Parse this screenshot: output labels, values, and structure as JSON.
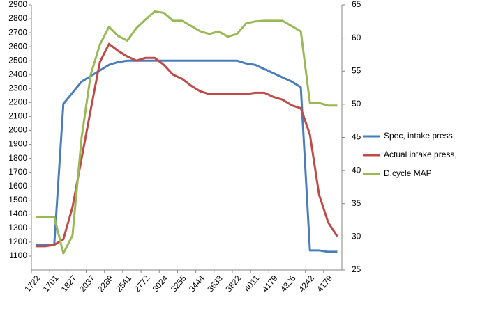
{
  "chart_data": {
    "type": "line",
    "categories": [
      "1722",
      null,
      "1701",
      null,
      "1827",
      null,
      "2037",
      null,
      "2289",
      null,
      "2541",
      null,
      "2772",
      null,
      "3024",
      null,
      "3255",
      null,
      "3444",
      null,
      "3633",
      null,
      "3822",
      null,
      "4011",
      null,
      "4179",
      null,
      "4326",
      null,
      "4242",
      null,
      "4179",
      null
    ],
    "series": [
      {
        "name": "Spec, intake press,",
        "color": "#4a7ebb",
        "values": [
          1180,
          1180,
          1180,
          2190,
          2270,
          2350,
          2390,
          2430,
          2470,
          2490,
          2500,
          2500,
          2500,
          2500,
          2500,
          2500,
          2500,
          2500,
          2500,
          2500,
          2500,
          2500,
          2500,
          2480,
          2470,
          2440,
          2410,
          2380,
          2350,
          2310,
          1140,
          1140,
          1130,
          1130
        ]
      },
      {
        "name": "Actual intake press,",
        "color": "#be4b48",
        "values": [
          1170,
          1170,
          1180,
          1220,
          1450,
          1800,
          2150,
          2490,
          2620,
          2570,
          2530,
          2500,
          2520,
          2520,
          2470,
          2400,
          2370,
          2320,
          2280,
          2260,
          2260,
          2260,
          2260,
          2260,
          2270,
          2270,
          2240,
          2220,
          2180,
          2160,
          1970,
          1540,
          1340,
          1240
        ]
      },
      {
        "name": "D,cycle MAP",
        "color": "#98b954",
        "axis": "y2",
        "values": [
          33,
          33,
          33,
          27.5,
          30.2,
          45,
          54.5,
          59,
          61.7,
          60.3,
          59.6,
          61.5,
          62.8,
          64,
          63.8,
          62.6,
          62.6,
          61.8,
          61,
          60.6,
          61,
          60.2,
          60.6,
          62.2,
          62.5,
          62.6,
          62.6,
          62.6,
          61.8,
          61,
          50.2,
          50.2,
          49.8,
          49.8
        ]
      }
    ],
    "ylim": [
      1000,
      2900
    ],
    "yticks": [
      1100,
      1200,
      1300,
      1400,
      1500,
      1600,
      1700,
      1800,
      1900,
      2000,
      2100,
      2200,
      2300,
      2400,
      2500,
      2600,
      2700,
      2800,
      2900
    ],
    "y2lim": [
      25,
      65
    ],
    "y2ticks": [
      25,
      30,
      35,
      40,
      45,
      50,
      55,
      60,
      65
    ],
    "legend": "right"
  }
}
